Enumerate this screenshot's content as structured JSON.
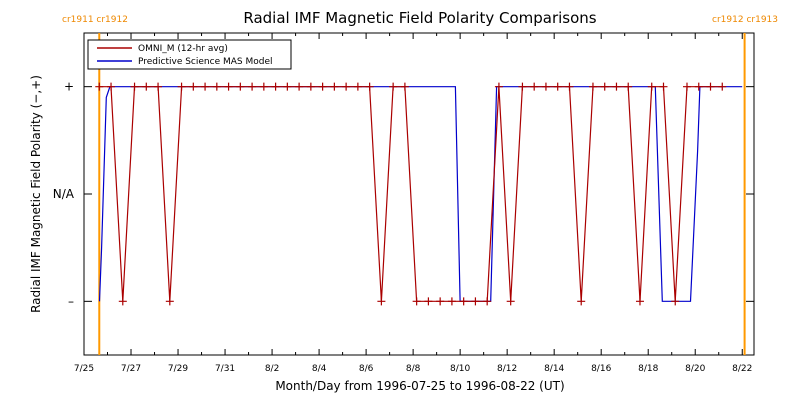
{
  "chart_data": {
    "type": "line",
    "title": "Radial IMF Magnetic Field Polarity Comparisons",
    "xlabel": "Month/Day from 1996-07-25 to 1996-08-22 (UT)",
    "ylabel": "Radial IMF Magnetic Field Polarity (−,+)",
    "x_tick_labels": [
      "7/25",
      "7/27",
      "7/29",
      "7/31",
      "8/2",
      "8/4",
      "8/6",
      "8/8",
      "8/10",
      "8/12",
      "8/14",
      "8/16",
      "8/18",
      "8/20",
      "8/22"
    ],
    "x_range_days": [
      0,
      28.5
    ],
    "y_tick_labels": [
      "+",
      "N/A",
      "–"
    ],
    "y_tick_values": [
      1,
      0,
      -1
    ],
    "ylim": [
      -1.5,
      1.5
    ],
    "cr_markers": [
      {
        "day": 0.65,
        "label": "cr1911 cr1912",
        "align": "left"
      },
      {
        "day": 28.1,
        "label": "cr1912 cr1913",
        "align": "right"
      }
    ],
    "legend": {
      "position": "top-left"
    },
    "series": [
      {
        "name": "OMNI_M (12-hr avg)",
        "color": "#aa0000",
        "points": [
          [
            0.65,
            1
          ],
          [
            1.15,
            1
          ],
          [
            1.65,
            -1
          ],
          [
            2.15,
            1
          ],
          [
            2.65,
            1
          ],
          [
            3.15,
            1
          ],
          [
            3.65,
            -1
          ],
          [
            4.15,
            1
          ],
          [
            4.65,
            1
          ],
          [
            5.15,
            1
          ],
          [
            5.65,
            1
          ],
          [
            6.15,
            1
          ],
          [
            6.65,
            1
          ],
          [
            7.15,
            1
          ],
          [
            7.65,
            1
          ],
          [
            8.15,
            1
          ],
          [
            8.65,
            1
          ],
          [
            9.15,
            1
          ],
          [
            9.65,
            1
          ],
          [
            10.15,
            1
          ],
          [
            10.65,
            1
          ],
          [
            11.15,
            1
          ],
          [
            11.65,
            1
          ],
          [
            12.15,
            1
          ],
          [
            12.65,
            -1
          ],
          [
            13.15,
            1
          ],
          [
            13.65,
            1
          ],
          [
            14.15,
            -1
          ],
          [
            14.65,
            -1
          ],
          [
            15.15,
            -1
          ],
          [
            15.65,
            -1
          ],
          [
            16.15,
            -1
          ],
          [
            16.65,
            -1
          ],
          [
            17.15,
            -1
          ],
          [
            17.65,
            1
          ],
          [
            18.15,
            -1
          ],
          [
            18.65,
            1
          ],
          [
            19.15,
            1
          ],
          [
            19.65,
            1
          ],
          [
            20.15,
            1
          ],
          [
            20.65,
            1
          ],
          [
            21.15,
            -1
          ],
          [
            21.65,
            1
          ],
          [
            22.15,
            1
          ],
          [
            22.65,
            1
          ],
          [
            23.15,
            1
          ],
          [
            23.65,
            -1
          ],
          [
            24.15,
            1
          ],
          [
            24.65,
            1
          ],
          [
            25.15,
            -1
          ],
          [
            25.65,
            1
          ],
          [
            26.15,
            1
          ],
          [
            26.65,
            1
          ],
          [
            27.15,
            1
          ]
        ]
      },
      {
        "name": "Predictive Science MAS Model",
        "color": "#0000cc",
        "points": [
          [
            0.66,
            -1
          ],
          [
            0.75,
            -0.5
          ],
          [
            0.95,
            0.9
          ],
          [
            1.1,
            1
          ],
          [
            15.8,
            1
          ],
          [
            16.0,
            -1
          ],
          [
            17.3,
            -1
          ],
          [
            17.55,
            1
          ],
          [
            24.3,
            1
          ],
          [
            24.6,
            -1
          ],
          [
            25.8,
            -1
          ],
          [
            26.1,
            0.4
          ],
          [
            26.2,
            1
          ],
          [
            28.0,
            1
          ]
        ]
      }
    ]
  }
}
